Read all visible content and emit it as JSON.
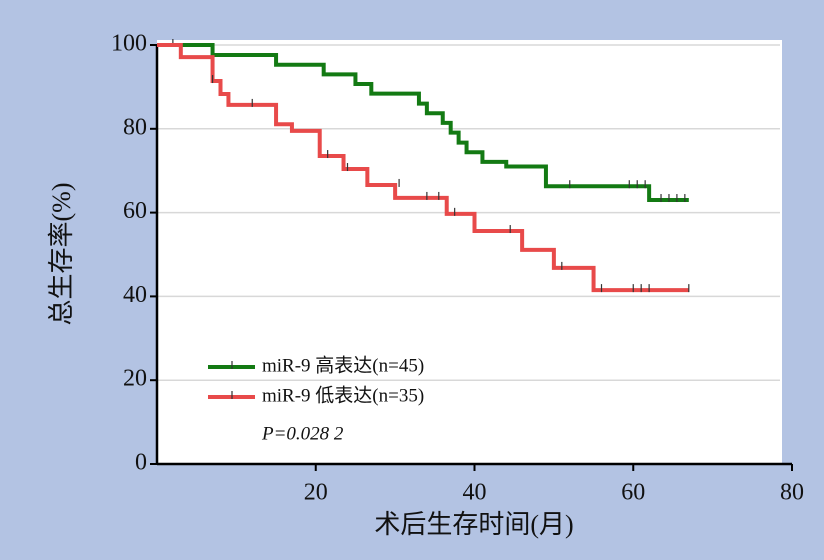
{
  "chart_data": {
    "type": "step",
    "xlabel": "术后生存时间(月)",
    "ylabel": "总生存率(%)",
    "xlim": [
      0,
      80
    ],
    "xticks": [
      20,
      40,
      60,
      80
    ],
    "ylim": [
      0,
      100
    ],
    "yticks": [
      0,
      20,
      40,
      60,
      80,
      100
    ],
    "grid": true,
    "annotation": "P=0.028 2",
    "series": [
      {
        "name": "miR-9 高表达(n=45)",
        "color": "#137a13",
        "x": [
          0,
          7,
          15,
          21,
          25,
          27,
          33,
          34,
          36,
          37,
          38,
          39,
          41,
          44,
          49,
          62,
          67
        ],
        "values": [
          100,
          97.6,
          95.3,
          93,
          90.7,
          88.4,
          86,
          83.7,
          81.4,
          79.1,
          76.7,
          74.4,
          72.1,
          71,
          66.3,
          63,
          63
        ],
        "censored": {
          "x": [
            2,
            52,
            59.5,
            60.5,
            61.5,
            63.5,
            64.5,
            65.5,
            66.5
          ],
          "values": [
            100,
            66.3,
            66.3,
            66.3,
            66.3,
            63,
            63,
            63,
            63
          ]
        }
      },
      {
        "name": "miR-9 低表达(n=35)",
        "color": "#e84a4a",
        "x": [
          0,
          3,
          7,
          8,
          9,
          15,
          17,
          20.5,
          23.5,
          26.5,
          30,
          36.5,
          40,
          46,
          50,
          55,
          67
        ],
        "values": [
          100,
          97.1,
          91.4,
          88.3,
          85.7,
          81.1,
          79.5,
          73.5,
          70.4,
          66.6,
          63.5,
          59.7,
          55.6,
          51.1,
          46.8,
          41.5,
          41.5
        ],
        "censored": {
          "x": [
            7,
            12,
            21.5,
            24,
            30.5,
            34,
            35.5,
            37.5,
            44.5,
            51,
            56,
            60,
            61,
            62,
            67
          ],
          "values": [
            91.4,
            85.7,
            73.5,
            70.4,
            66.6,
            63.5,
            63.5,
            59.7,
            55.6,
            46.8,
            41.5,
            41.5,
            41.5,
            41.5,
            41.5
          ]
        }
      }
    ]
  }
}
